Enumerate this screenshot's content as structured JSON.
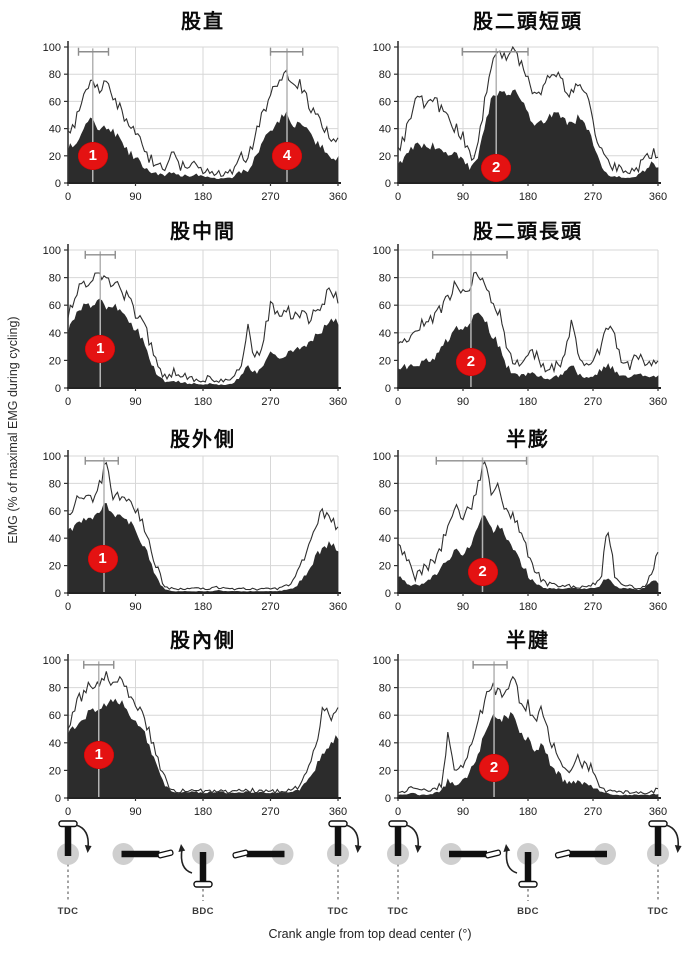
{
  "figure": {
    "ylabel": "EMG (% of maximal EMG during cycling)",
    "xlabel": "Crank angle from top dead center (°)",
    "x_ticks": [
      0,
      90,
      180,
      270,
      360
    ],
    "y_ticks": [
      0,
      20,
      40,
      60,
      80,
      100
    ],
    "colors": {
      "dark_fill": "#2c2c2c",
      "upper_line": "#2f2f2f",
      "band_fill": "#ffffff",
      "grid": "#d7d7d7",
      "axis": "#333333",
      "tick_text": "#1a1a1a",
      "error_bar": "#8d8d8d",
      "peak_line": "#b3b3b3",
      "marker_red": "#e41212",
      "marker_text": "#ffffff"
    }
  },
  "chart_data": [
    {
      "type": "area",
      "id": "rectus-femoris",
      "title": "股直",
      "xlabel_implicit_deg": true,
      "x_range": [
        0,
        360
      ],
      "x_step": 10,
      "ylim": [
        0,
        100
      ],
      "series": [
        {
          "name": "mean_plus_sd",
          "values": [
            38,
            45,
            62,
            79,
            70,
            72,
            65,
            55,
            42,
            38,
            25,
            18,
            15,
            13,
            22,
            12,
            12,
            14,
            10,
            8,
            7,
            7,
            8,
            20,
            18,
            35,
            52,
            65,
            75,
            85,
            70,
            72,
            60,
            50,
            42,
            32,
            30
          ]
        },
        {
          "name": "mean",
          "values": [
            25,
            28,
            38,
            50,
            40,
            42,
            38,
            30,
            22,
            18,
            12,
            8,
            6,
            5,
            8,
            5,
            5,
            6,
            5,
            4,
            3,
            3,
            4,
            8,
            8,
            18,
            30,
            38,
            45,
            50,
            42,
            45,
            38,
            30,
            25,
            20,
            18
          ]
        }
      ],
      "markers": [
        {
          "label": "1",
          "x": 33,
          "y": 20
        },
        {
          "label": "4",
          "x": 292,
          "y": 20
        }
      ],
      "error_bars": [
        {
          "from": 14,
          "to": 54,
          "peak": 33
        },
        {
          "from": 270,
          "to": 313,
          "peak": 292
        }
      ]
    },
    {
      "type": "area",
      "id": "biceps-femoris-short-head",
      "title": "股二頭短頭",
      "x_range": [
        0,
        360
      ],
      "x_step": 10,
      "ylim": [
        0,
        100
      ],
      "series": [
        {
          "name": "mean_plus_sd",
          "values": [
            25,
            35,
            55,
            62,
            55,
            60,
            55,
            45,
            40,
            35,
            20,
            25,
            60,
            90,
            98,
            92,
            97,
            88,
            75,
            62,
            70,
            78,
            82,
            70,
            65,
            72,
            65,
            45,
            25,
            15,
            12,
            10,
            8,
            10,
            15,
            22,
            20
          ]
        },
        {
          "name": "mean",
          "values": [
            12,
            18,
            25,
            28,
            25,
            27,
            25,
            22,
            20,
            18,
            10,
            15,
            40,
            62,
            68,
            65,
            68,
            60,
            50,
            42,
            45,
            48,
            50,
            45,
            42,
            48,
            42,
            28,
            12,
            6,
            5,
            4,
            4,
            5,
            8,
            14,
            12
          ]
        }
      ],
      "markers": [
        {
          "label": "2",
          "x": 136,
          "y": 11
        }
      ],
      "error_bars": [
        {
          "from": 89,
          "to": 180,
          "peak": 136
        }
      ]
    },
    {
      "type": "area",
      "id": "vastus-intermedius",
      "title": "股中間",
      "x_range": [
        0,
        360
      ],
      "x_step": 10,
      "ylim": [
        0,
        100
      ],
      "series": [
        {
          "name": "mean_plus_sd",
          "values": [
            55,
            68,
            75,
            78,
            82,
            76,
            78,
            72,
            65,
            55,
            48,
            30,
            15,
            8,
            12,
            10,
            8,
            6,
            5,
            8,
            5,
            5,
            6,
            15,
            42,
            20,
            35,
            60,
            55,
            58,
            52,
            55,
            50,
            55,
            62,
            72,
            65
          ]
        },
        {
          "name": "mean",
          "values": [
            40,
            52,
            58,
            60,
            63,
            58,
            60,
            55,
            48,
            42,
            35,
            20,
            8,
            4,
            5,
            4,
            3,
            3,
            2,
            3,
            2,
            2,
            3,
            8,
            15,
            10,
            18,
            25,
            22,
            25,
            28,
            30,
            32,
            38,
            42,
            48,
            47
          ]
        }
      ],
      "markers": [
        {
          "label": "1",
          "x": 43,
          "y": 28
        }
      ],
      "error_bars": [
        {
          "from": 23,
          "to": 63,
          "peak": 43
        }
      ]
    },
    {
      "type": "area",
      "id": "biceps-femoris-long-head",
      "title": "股二頭長頭",
      "x_range": [
        0,
        360
      ],
      "x_step": 10,
      "ylim": [
        0,
        100
      ],
      "series": [
        {
          "name": "mean_plus_sd",
          "values": [
            28,
            38,
            35,
            45,
            48,
            52,
            58,
            65,
            78,
            68,
            75,
            85,
            78,
            62,
            55,
            30,
            20,
            15,
            22,
            25,
            15,
            12,
            18,
            20,
            50,
            25,
            15,
            18,
            30,
            45,
            38,
            20,
            15,
            22,
            20,
            18,
            18
          ]
        },
        {
          "name": "mean",
          "values": [
            12,
            15,
            15,
            18,
            20,
            22,
            28,
            35,
            45,
            42,
            48,
            57,
            50,
            38,
            30,
            15,
            10,
            8,
            10,
            10,
            7,
            6,
            8,
            10,
            18,
            10,
            7,
            8,
            12,
            15,
            13,
            8,
            7,
            9,
            9,
            8,
            8
          ]
        }
      ],
      "markers": [
        {
          "label": "2",
          "x": 101,
          "y": 19
        }
      ],
      "error_bars": [
        {
          "from": 48,
          "to": 151,
          "peak": 101
        }
      ]
    },
    {
      "type": "area",
      "id": "vastus-lateralis",
      "title": "股外側",
      "x_range": [
        0,
        360
      ],
      "x_step": 10,
      "ylim": [
        0,
        100
      ],
      "series": [
        {
          "name": "mean_plus_sd",
          "values": [
            60,
            65,
            72,
            68,
            75,
            93,
            72,
            70,
            72,
            62,
            50,
            35,
            15,
            5,
            3,
            3,
            3,
            3,
            3,
            3,
            4,
            3,
            3,
            3,
            3,
            3,
            3,
            3,
            3,
            5,
            8,
            20,
            35,
            50,
            60,
            55,
            48
          ]
        },
        {
          "name": "mean",
          "values": [
            45,
            48,
            52,
            55,
            58,
            65,
            55,
            55,
            52,
            45,
            35,
            22,
            8,
            2,
            1,
            1,
            1,
            1,
            1,
            1,
            2,
            1,
            1,
            1,
            1,
            1,
            1,
            1,
            1,
            2,
            3,
            8,
            15,
            25,
            33,
            36,
            30
          ]
        }
      ],
      "markers": [
        {
          "label": "1",
          "x": 46,
          "y": 25
        }
      ],
      "error_bars": [
        {
          "from": 23,
          "to": 67,
          "peak": 48
        }
      ]
    },
    {
      "type": "area",
      "id": "semimembranosus",
      "title": "半膨",
      "x_range": [
        0,
        360
      ],
      "x_step": 10,
      "ylim": [
        0,
        100
      ],
      "series": [
        {
          "name": "mean_plus_sd",
          "values": [
            33,
            28,
            12,
            15,
            20,
            25,
            35,
            50,
            65,
            55,
            62,
            78,
            95,
            70,
            78,
            60,
            55,
            42,
            30,
            15,
            8,
            6,
            5,
            5,
            5,
            5,
            5,
            6,
            8,
            45,
            15,
            6,
            5,
            4,
            5,
            12,
            30
          ]
        },
        {
          "name": "mean",
          "values": [
            11,
            8,
            5,
            6,
            8,
            12,
            18,
            25,
            30,
            28,
            35,
            45,
            58,
            45,
            50,
            38,
            30,
            22,
            12,
            6,
            4,
            3,
            3,
            3,
            3,
            3,
            3,
            3,
            4,
            12,
            5,
            3,
            3,
            2,
            3,
            8,
            8
          ]
        }
      ],
      "markers": [
        {
          "label": "2",
          "x": 117,
          "y": 15
        }
      ],
      "error_bars": [
        {
          "from": 53,
          "to": 178,
          "peak": 117
        }
      ]
    },
    {
      "type": "area",
      "id": "vastus-medialis",
      "title": "股內側",
      "x_range": [
        0,
        360
      ],
      "x_step": 10,
      "ylim": [
        0,
        100
      ],
      "series": [
        {
          "name": "mean_plus_sd",
          "values": [
            48,
            68,
            75,
            82,
            85,
            88,
            85,
            88,
            75,
            65,
            60,
            45,
            30,
            12,
            6,
            5,
            5,
            5,
            5,
            5,
            5,
            5,
            5,
            5,
            6,
            5,
            5,
            5,
            5,
            5,
            6,
            8,
            20,
            35,
            68,
            60,
            65
          ]
        },
        {
          "name": "mean",
          "values": [
            45,
            52,
            58,
            62,
            65,
            68,
            70,
            70,
            62,
            55,
            48,
            35,
            22,
            8,
            4,
            4,
            4,
            4,
            4,
            4,
            4,
            4,
            4,
            4,
            4,
            4,
            4,
            4,
            4,
            4,
            5,
            6,
            12,
            22,
            32,
            38,
            45
          ]
        }
      ],
      "markers": [
        {
          "label": "1",
          "x": 41,
          "y": 31
        }
      ],
      "error_bars": [
        {
          "from": 21,
          "to": 61,
          "peak": 41
        }
      ]
    },
    {
      "type": "area",
      "id": "semitendinosus",
      "title": "半腱",
      "x_range": [
        0,
        360
      ],
      "x_step": 10,
      "ylim": [
        0,
        100
      ],
      "series": [
        {
          "name": "mean_plus_sd",
          "values": [
            5,
            4,
            8,
            5,
            5,
            6,
            10,
            48,
            15,
            22,
            35,
            55,
            70,
            82,
            75,
            80,
            90,
            65,
            68,
            52,
            65,
            40,
            35,
            22,
            20,
            28,
            22,
            20,
            8,
            5,
            4,
            4,
            4,
            4,
            4,
            4,
            6
          ]
        },
        {
          "name": "mean",
          "values": [
            2,
            2,
            3,
            2,
            2,
            3,
            5,
            12,
            8,
            12,
            20,
            30,
            45,
            60,
            55,
            58,
            62,
            45,
            42,
            32,
            38,
            25,
            18,
            12,
            10,
            12,
            10,
            8,
            4,
            3,
            2,
            2,
            2,
            2,
            2,
            2,
            3
          ]
        }
      ],
      "markers": [
        {
          "label": "2",
          "x": 133,
          "y": 22
        }
      ],
      "error_bars": [
        {
          "from": 104,
          "to": 151,
          "peak": 133
        }
      ]
    }
  ],
  "diagrams": {
    "tdc_label": "TDC",
    "bdc_label": "BDC",
    "items": [
      {
        "col": 0,
        "deg": 0,
        "orientation": "up",
        "label": "TDC"
      },
      {
        "col": 0,
        "deg": 90,
        "orientation": "right"
      },
      {
        "col": 0,
        "deg": 180,
        "orientation": "down",
        "label": "BDC"
      },
      {
        "col": 0,
        "deg": 270,
        "orientation": "left"
      },
      {
        "col": 0,
        "deg": 360,
        "orientation": "up",
        "label": "TDC"
      },
      {
        "col": 1,
        "deg": 0,
        "orientation": "up",
        "label": "TDC"
      },
      {
        "col": 1,
        "deg": 90,
        "orientation": "right"
      },
      {
        "col": 1,
        "deg": 180,
        "orientation": "down",
        "label": "BDC"
      },
      {
        "col": 1,
        "deg": 270,
        "orientation": "left"
      },
      {
        "col": 1,
        "deg": 360,
        "orientation": "up",
        "label": "TDC"
      }
    ]
  }
}
